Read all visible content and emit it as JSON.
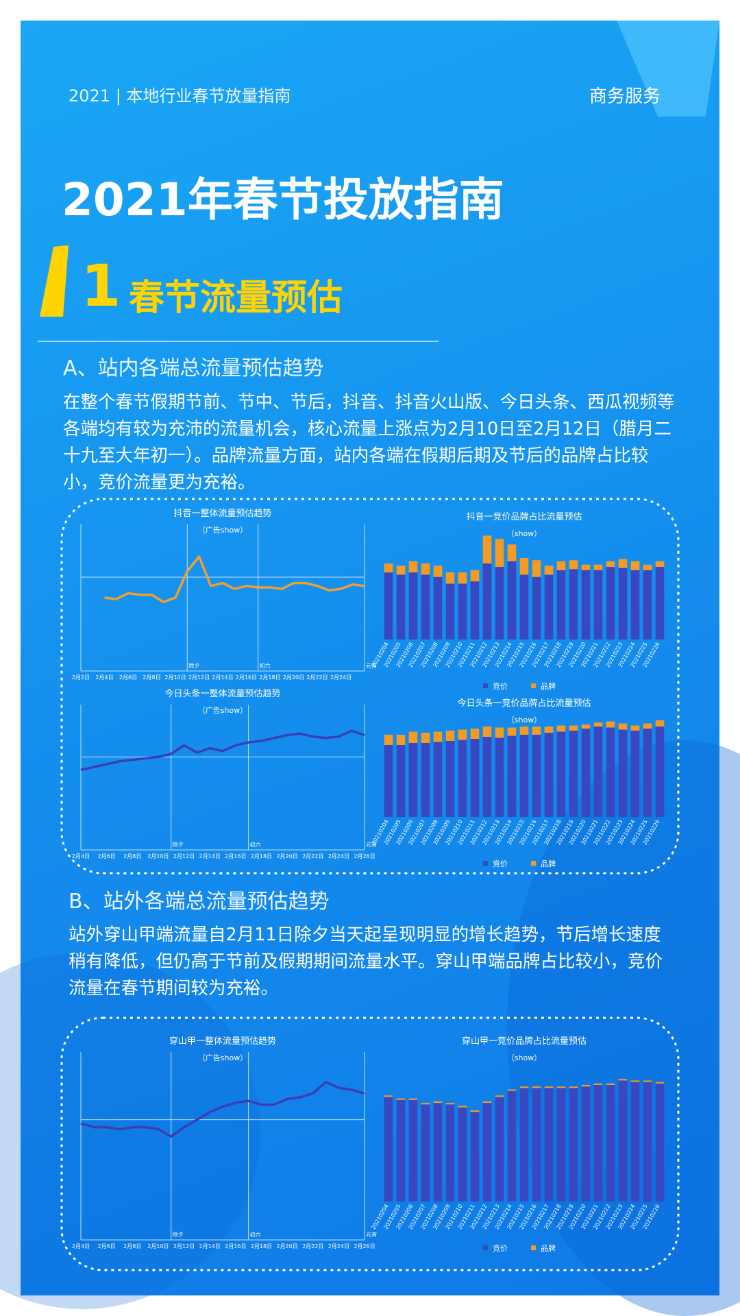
{
  "header": {
    "left": "2021 | 本地行业春节放量指南",
    "right": "商务服务"
  },
  "title": "2021年春节投放指南",
  "section": {
    "number": "1",
    "title": "春节流量预估"
  },
  "part_a": {
    "heading": "A、站内各端总流量预估趋势",
    "text": "在整个春节假期节前、节中、节后，抖音、抖音火山版、今日头条、西瓜视频等各端均有较为充沛的流量机会，核心流量上涨点为2月10日至2月12日（腊月二十九至大年初一）。品牌流量方面，站内各端在假期后期及节后的品牌占比较小，竞价流量更为充裕。"
  },
  "part_b": {
    "heading": "B、站外各端总流量预估趋势",
    "text": "站外穿山甲端流量自2月11日除夕当天起呈现明显的增长趋势，节后增长速度稍有降低，但仍高于节前及假期期间流量水平。穿山甲端品牌占比较小，竞价流量在春节期间较为充裕。"
  },
  "chart_data": [
    {
      "type": "line",
      "title": "抖音一整体流量预估趋势",
      "subtitle": "（广告show）",
      "color": "#f0a030",
      "categories": [
        "2月2日",
        null,
        "2月4日",
        null,
        "2月6日",
        null,
        "2月8日",
        null,
        "2月10日",
        null,
        "2月12日",
        null,
        "2月14日",
        null,
        "2月16日",
        null,
        "2月18日",
        null,
        "2月20日",
        null,
        "2月22日",
        null,
        "2月24日",
        null,
        null
      ],
      "markers": [
        null,
        null,
        null,
        null,
        null,
        null,
        null,
        null,
        null,
        "除夕",
        null,
        null,
        null,
        null,
        null,
        "初六",
        null,
        null,
        null,
        null,
        null,
        null,
        null,
        null,
        "元宵"
      ],
      "values": [
        null,
        null,
        50,
        49,
        53,
        52,
        52,
        47,
        50,
        68,
        78,
        58,
        60,
        56,
        58,
        57,
        57,
        56,
        60,
        60,
        58,
        55,
        56,
        59,
        58
      ],
      "ylim": [
        0,
        100
      ]
    },
    {
      "type": "bar",
      "title": "抖音一竞价品牌占比流量预估",
      "subtitle": "（show）",
      "categories": [
        "20210204",
        "20210205",
        "20210206",
        "20210207",
        "20210208",
        "20210209",
        "20210210",
        "20210211",
        "20210212",
        "20210213",
        "20210214",
        "20210215",
        "20210216",
        "20210217",
        "20210218",
        "20210219",
        "20210220",
        "20210221",
        "20210222",
        "20210223",
        "20210224",
        "20210225",
        "20210226"
      ],
      "series": [
        {
          "name": "竞价",
          "color": "#3948c0",
          "values": [
            60,
            58,
            60,
            58,
            56,
            50,
            50,
            52,
            68,
            65,
            70,
            58,
            56,
            58,
            62,
            63,
            62,
            62,
            65,
            64,
            62,
            62,
            65
          ]
        },
        {
          "name": "品牌",
          "color": "#f59a23",
          "values": [
            8,
            8,
            10,
            10,
            10,
            10,
            10,
            10,
            25,
            25,
            15,
            15,
            15,
            8,
            8,
            8,
            5,
            5,
            5,
            8,
            8,
            5,
            5
          ]
        }
      ],
      "ylim": [
        0,
        100
      ]
    },
    {
      "type": "line",
      "title": "今日头条一整体流量预估趋势",
      "subtitle": "（广告show）",
      "color": "#3b3fb5",
      "categories": [
        "2月4日",
        null,
        "2月6日",
        null,
        "2月8日",
        null,
        "2月10日",
        null,
        "2月12日",
        null,
        "2月14日",
        null,
        "2月16日",
        null,
        "2月18日",
        null,
        "2月20日",
        null,
        "2月22日",
        null,
        "2月24日",
        null,
        "2月26日"
      ],
      "markers": [
        null,
        null,
        null,
        null,
        null,
        null,
        null,
        "除夕",
        null,
        null,
        null,
        null,
        null,
        "初六",
        null,
        null,
        null,
        null,
        null,
        null,
        null,
        null,
        "元宵"
      ],
      "values": [
        55,
        57,
        59,
        61,
        62,
        63,
        64,
        66,
        72,
        67,
        70,
        68,
        72,
        74,
        75,
        77,
        79,
        80,
        78,
        77,
        78,
        82,
        79
      ],
      "ylim": [
        0,
        100
      ]
    },
    {
      "type": "bar",
      "title": "今日头条一竞价品牌占比流量预估",
      "subtitle": "（show）",
      "categories": [
        "20210204",
        "20210205",
        "20210206",
        "20210207",
        "20210208",
        "20210209",
        "20210210",
        "20210211",
        "20210212",
        "20210213",
        "20210214",
        "20210215",
        "20210216",
        "20210217",
        "20210218",
        "20210219",
        "20210220",
        "20210221",
        "20210222",
        "20210223",
        "20210224",
        "20210225",
        "20210226"
      ],
      "series": [
        {
          "name": "竞价",
          "color": "#3948c0",
          "values": [
            70,
            70,
            72,
            72,
            73,
            74,
            75,
            76,
            78,
            77,
            79,
            80,
            80,
            82,
            83,
            84,
            86,
            88,
            87,
            85,
            84,
            86,
            88
          ]
        },
        {
          "name": "品牌",
          "color": "#f59a23",
          "values": [
            10,
            10,
            11,
            10,
            10,
            10,
            10,
            10,
            10,
            10,
            8,
            8,
            8,
            6,
            6,
            5,
            4,
            4,
            6,
            6,
            5,
            5,
            6
          ]
        }
      ],
      "ylim": [
        0,
        100
      ]
    },
    {
      "type": "line",
      "title": "穿山甲一整体流量预估趋势",
      "subtitle": "（广告show）",
      "color": "#3b3fb5",
      "categories": [
        "2月4日",
        null,
        "2月6日",
        null,
        "2月8日",
        null,
        "2月10日",
        null,
        "2月12日",
        null,
        "2月14日",
        null,
        "2月16日",
        null,
        "2月18日",
        null,
        "2月20日",
        null,
        "2月22日",
        null,
        "2月24日",
        null,
        "2月26日"
      ],
      "markers": [
        null,
        null,
        null,
        null,
        null,
        null,
        null,
        "除夕",
        null,
        null,
        null,
        null,
        null,
        "初六",
        null,
        null,
        null,
        null,
        null,
        null,
        null,
        null,
        "元宵"
      ],
      "values": [
        62,
        60,
        60,
        59,
        60,
        60,
        59,
        55,
        60,
        64,
        68,
        71,
        73,
        74,
        72,
        72,
        75,
        76,
        78,
        84,
        81,
        80,
        78
      ],
      "ylim": [
        0,
        100
      ]
    },
    {
      "type": "bar",
      "title": "穿山甲一竞价品牌占比流量预估",
      "subtitle": "（show）",
      "categories": [
        "20210204",
        "20210205",
        "20210206",
        "20210207",
        "20210208",
        "20210209",
        "20210210",
        "20210211",
        "20210212",
        "20210213",
        "20210214",
        "20210215",
        "20210216",
        "20210217",
        "20210218",
        "20210219",
        "20210220",
        "20210221",
        "20210222",
        "20210223",
        "20210224",
        "20210225",
        "20210226"
      ],
      "series": [
        {
          "name": "竞价",
          "color": "#3948c0",
          "values": [
            70,
            68,
            68,
            65,
            66,
            65,
            63,
            60,
            66,
            70,
            74,
            76,
            76,
            76,
            76,
            76,
            77,
            78,
            78,
            81,
            80,
            80,
            79
          ]
        },
        {
          "name": "品牌",
          "color": "#f59a23",
          "values": [
            1,
            1,
            1,
            1,
            1,
            1,
            1,
            1,
            1,
            1,
            1,
            1,
            1,
            1,
            1,
            1,
            1,
            1,
            1,
            1,
            1,
            1,
            1
          ]
        }
      ],
      "ylim": [
        0,
        100
      ]
    }
  ]
}
